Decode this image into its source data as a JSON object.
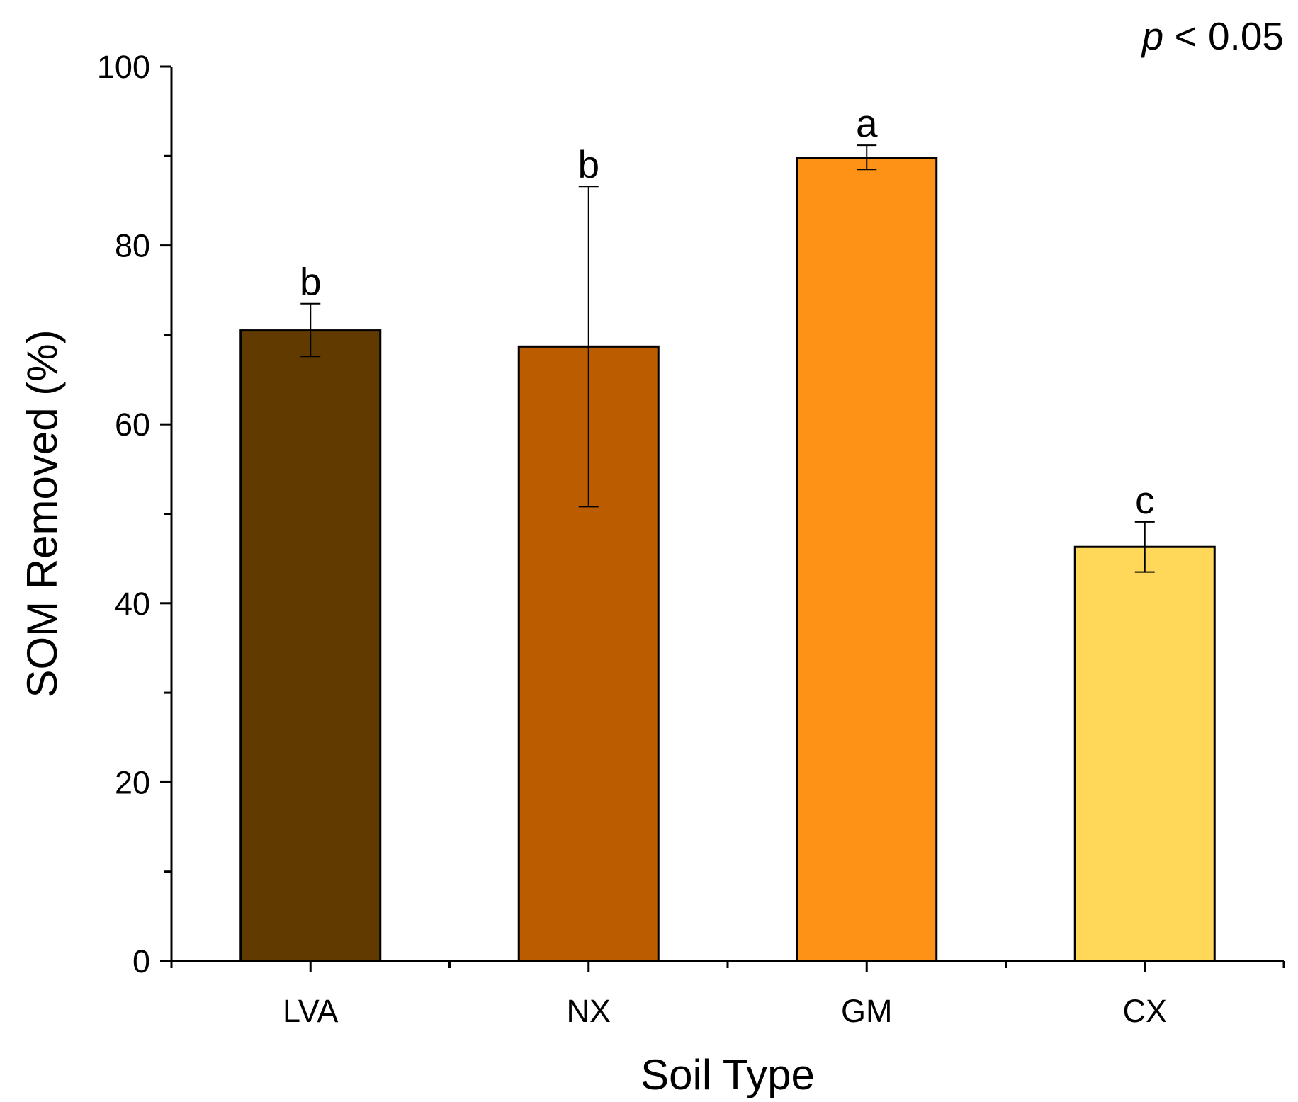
{
  "chart_data": {
    "type": "bar",
    "title": "",
    "xlabel": "Soil Type",
    "ylabel": "SOM Removed (%)",
    "ylim": [
      0,
      100
    ],
    "yticks": [
      "0",
      "20",
      "40",
      "60",
      "80",
      "100"
    ],
    "ytick_values": [
      0,
      20,
      40,
      60,
      80,
      100
    ],
    "minor_ytick_values": [
      10,
      30,
      50,
      70,
      90
    ],
    "categories": [
      "LVA",
      "NX",
      "GM",
      "CX"
    ],
    "values": [
      70.5,
      68.7,
      89.8,
      46.3
    ],
    "error_upper": [
      73.5,
      86.6,
      91.2,
      49.1
    ],
    "error_lower": [
      67.6,
      50.8,
      88.5,
      43.5
    ],
    "significance_letters": [
      "b",
      "b",
      "a",
      "c"
    ],
    "bar_colors": [
      "#613a00",
      "#bb5c00",
      "#fd9217",
      "#ffd85a"
    ],
    "annotation": {
      "p_italic": "p",
      "p_rest": " < 0.05"
    }
  }
}
